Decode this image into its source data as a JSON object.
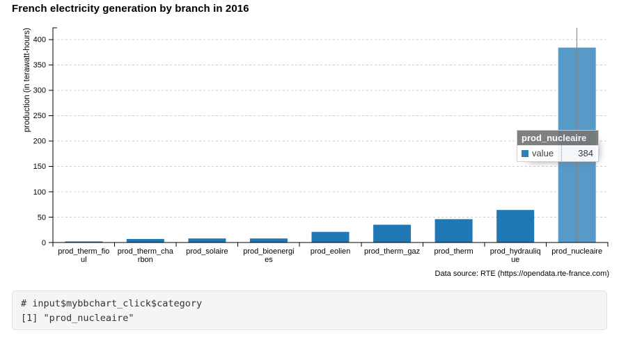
{
  "title": "French electricity generation by branch in 2016",
  "chart_data": {
    "type": "bar",
    "title": "French electricity generation by branch in 2016",
    "categories": [
      "prod_therm_fioul",
      "prod_therm_charbon",
      "prod_solaire",
      "prod_bioenergies",
      "prod_eolien",
      "prod_therm_gaz",
      "prod_therm",
      "prod_hydraulique",
      "prod_nucleaire"
    ],
    "category_label_lines": [
      [
        "prod_therm_fio",
        "ul"
      ],
      [
        "prod_therm_cha",
        "rbon"
      ],
      [
        "prod_solaire"
      ],
      [
        "prod_bioenergi",
        "es"
      ],
      [
        "prod_eolien"
      ],
      [
        "prod_therm_gaz"
      ],
      [
        "prod_therm"
      ],
      [
        "prod_hydrauliq",
        "ue"
      ],
      [
        "prod_nucleaire"
      ]
    ],
    "series": [
      {
        "name": "value",
        "values": [
          2,
          7,
          8,
          8,
          21,
          35,
          46,
          64,
          384
        ]
      }
    ],
    "xlabel": "",
    "ylabel": "production (in terawatt-hours)",
    "yticks": [
      0,
      50,
      100,
      150,
      200,
      250,
      300,
      350,
      400
    ],
    "ylim": [
      0,
      423
    ],
    "grid": "dashed-horizontal",
    "legend_position": "none",
    "selected_index": 8,
    "bar_color": "#1f77b4",
    "selected_bar_color": "#5799c7",
    "focus_line_color": "#808080"
  },
  "tooltip": {
    "title": "prod_nucleaire",
    "series_name": "value",
    "value": "384",
    "marker_color": "#1f77b4"
  },
  "footer": {
    "data_source": "Data source: RTE (https://opendata.rte-france.com)"
  },
  "console": {
    "lines": [
      "# input$mybbchart_click$category",
      "[1] \"prod_nucleaire\""
    ]
  }
}
